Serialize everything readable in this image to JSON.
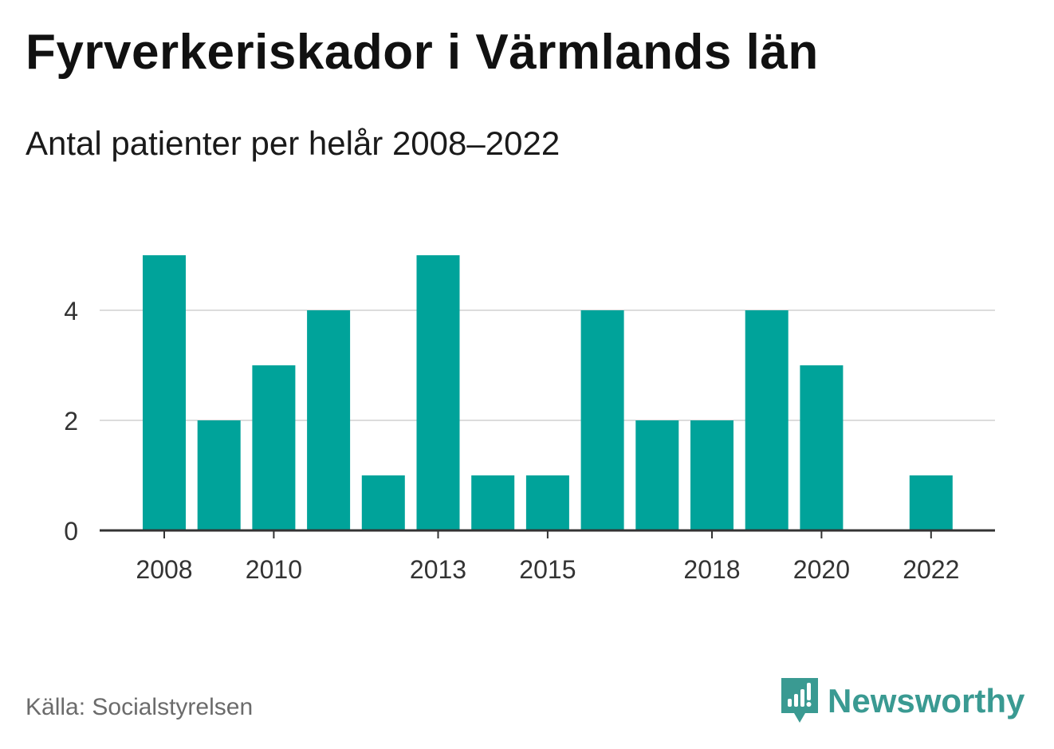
{
  "title": "Fyrverkeriskador i Värmlands län",
  "subtitle": "Antal patienter per helår 2008–2022",
  "source": "Källa: Socialstyrelsen",
  "brand": {
    "name": "Newsworthy",
    "icon": "newsworthy-logo-icon",
    "color": "#3a9a92"
  },
  "chart_data": {
    "type": "bar",
    "categories": [
      "2008",
      "2009",
      "2010",
      "2011",
      "2012",
      "2013",
      "2014",
      "2015",
      "2016",
      "2017",
      "2018",
      "2019",
      "2020",
      "2021",
      "2022"
    ],
    "values": [
      5,
      2,
      3,
      4,
      1,
      5,
      1,
      1,
      4,
      2,
      2,
      4,
      3,
      0,
      1
    ],
    "x_tick_labels": [
      "2008",
      "2010",
      "2013",
      "2015",
      "2018",
      "2020",
      "2022"
    ],
    "y_ticks": [
      0,
      2,
      4
    ],
    "ylim": [
      0,
      5
    ],
    "grid": true,
    "bar_color": "#00a39a",
    "xlabel": "",
    "ylabel": ""
  }
}
